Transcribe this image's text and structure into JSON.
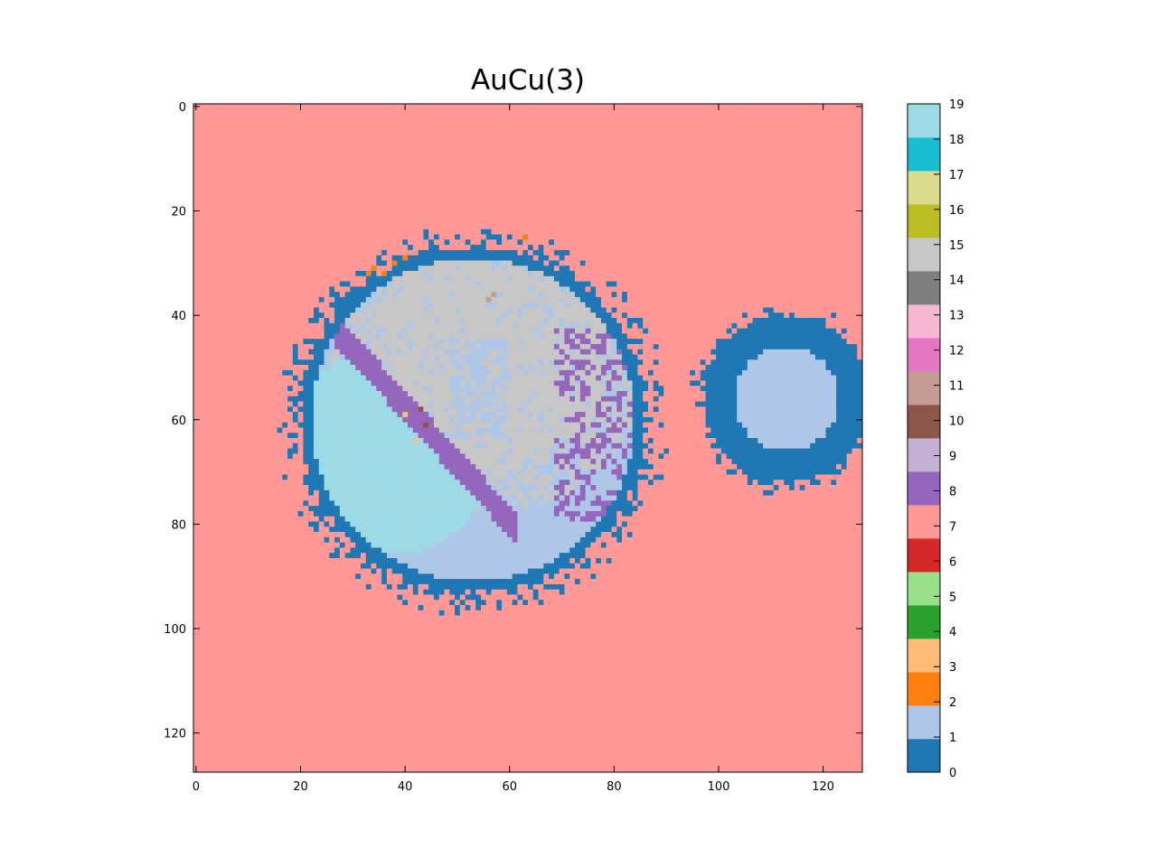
{
  "chart_data": {
    "type": "heatmap",
    "title": "AuCu(3)",
    "xlabel": "",
    "ylabel": "",
    "grid_size": 128,
    "xlim": [
      -0.5,
      127.5
    ],
    "ylim": [
      127.5,
      -0.5
    ],
    "x_ticks": [
      "0",
      "20",
      "40",
      "60",
      "80",
      "100",
      "120"
    ],
    "y_ticks": [
      "0",
      "20",
      "40",
      "60",
      "80",
      "100",
      "120"
    ],
    "x_tick_values": [
      0,
      20,
      40,
      60,
      80,
      100,
      120
    ],
    "y_tick_values": [
      0,
      20,
      40,
      60,
      80,
      100,
      120
    ],
    "colorbar": {
      "range": [
        0,
        19
      ],
      "ticks": [
        "0",
        "1",
        "2",
        "3",
        "4",
        "5",
        "6",
        "7",
        "8",
        "9",
        "10",
        "11",
        "12",
        "13",
        "14",
        "15",
        "16",
        "17",
        "18",
        "19"
      ],
      "colors": [
        "#1f77b4",
        "#aec7e8",
        "#ff7f0e",
        "#ffbb78",
        "#2ca02c",
        "#98df8a",
        "#d62728",
        "#ff9896",
        "#9467bd",
        "#c5b0d5",
        "#8c564b",
        "#c49c94",
        "#e377c2",
        "#f7b6d2",
        "#7f7f7f",
        "#c7c7c7",
        "#bcbd22",
        "#dbdb8d",
        "#17becf",
        "#9edae5"
      ]
    },
    "regions": {
      "background_class": 7,
      "large_disk": {
        "center_x": 53,
        "center_y": 60,
        "radius": 33,
        "class": 0,
        "halo_extent": 5
      },
      "inner_disk": {
        "center_x": 54,
        "center_y": 58,
        "radius": 33,
        "class": 1
      },
      "main_grain": {
        "center_x": 56,
        "center_y": 47,
        "radius": 23,
        "class": 15
      },
      "lower_left_grain": {
        "center_x": 37,
        "center_y": 66,
        "radius": 20,
        "class": 19
      },
      "grain_boundary_class": 8,
      "small_disk": {
        "center_x": 113,
        "center_y": 56,
        "radius": 16,
        "class": 0,
        "inner_radius": 10,
        "inner_class": 1
      },
      "speckle_classes": [
        2,
        3,
        10,
        11
      ]
    }
  }
}
